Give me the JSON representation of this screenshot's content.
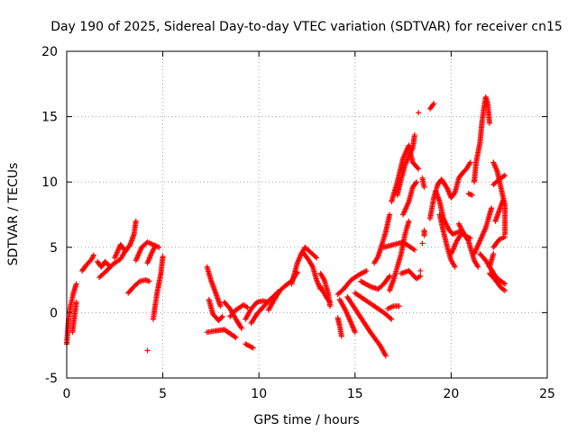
{
  "chart_data": {
    "type": "scatter",
    "title": "Day 190 of 2025, Sidereal Day-to-day VTEC variation (SDTVAR) for receiver cn15",
    "xlabel": "GPS time / hours",
    "ylabel": "SDTVAR / TECUs",
    "xlim": [
      0,
      25
    ],
    "ylim": [
      -5,
      20
    ],
    "xticks": [
      "0",
      "5",
      "10",
      "15",
      "20",
      "25"
    ],
    "yticks": [
      "-5",
      "0",
      "5",
      "10",
      "15",
      "20"
    ],
    "grid": true,
    "marker": "+",
    "color": "#ff0000",
    "series": [
      {
        "name": "SDTVAR",
        "tracks": [
          [
            [
              0.0,
              -2.4
            ],
            [
              0.1,
              -0.5
            ],
            [
              0.2,
              0.5
            ],
            [
              0.35,
              1.5
            ],
            [
              0.5,
              2.2
            ]
          ],
          [
            [
              0.3,
              -1.5
            ],
            [
              0.4,
              -0.3
            ],
            [
              0.5,
              0.8
            ]
          ],
          [
            [
              0.8,
              3.2
            ],
            [
              1.0,
              3.6
            ],
            [
              1.3,
              4.1
            ],
            [
              1.4,
              4.4
            ]
          ],
          [
            [
              1.6,
              3.9
            ],
            [
              1.8,
              3.5
            ],
            [
              2.0,
              3.9
            ],
            [
              2.2,
              3.6
            ]
          ],
          [
            [
              1.7,
              2.7
            ],
            [
              2.0,
              3.1
            ],
            [
              2.4,
              3.7
            ],
            [
              2.8,
              4.1
            ],
            [
              3.0,
              4.6
            ],
            [
              3.3,
              5.2
            ],
            [
              3.5,
              6.0
            ],
            [
              3.6,
              7.0
            ]
          ],
          [
            [
              2.5,
              4.2
            ],
            [
              2.8,
              5.2
            ],
            [
              3.0,
              4.8
            ]
          ],
          [
            [
              3.2,
              1.5
            ],
            [
              3.5,
              2.0
            ],
            [
              3.8,
              2.4
            ],
            [
              4.1,
              2.5
            ],
            [
              4.3,
              2.4
            ]
          ],
          [
            [
              3.6,
              4.0
            ],
            [
              3.9,
              5.0
            ],
            [
              4.2,
              5.4
            ],
            [
              4.5,
              5.2
            ],
            [
              4.8,
              5.0
            ]
          ],
          [
            [
              4.2,
              3.8
            ],
            [
              4.4,
              4.5
            ],
            [
              4.6,
              5.1
            ]
          ],
          [
            [
              4.5,
              -0.5
            ],
            [
              4.7,
              1.5
            ],
            [
              4.9,
              3.0
            ],
            [
              5.0,
              4.3
            ]
          ],
          [
            [
              4.2,
              -2.9
            ]
          ],
          [
            [
              7.3,
              3.5
            ],
            [
              7.5,
              2.5
            ],
            [
              7.8,
              1.3
            ],
            [
              8.0,
              0.5
            ]
          ],
          [
            [
              7.4,
              1.0
            ],
            [
              7.6,
              -0.1
            ],
            [
              7.9,
              -0.6
            ],
            [
              8.1,
              -0.3
            ]
          ],
          [
            [
              7.3,
              -1.5
            ],
            [
              7.7,
              -1.4
            ],
            [
              8.2,
              -1.3
            ],
            [
              8.5,
              -1.6
            ],
            [
              8.8,
              -1.9
            ]
          ],
          [
            [
              8.2,
              0.8
            ],
            [
              8.5,
              0.3
            ],
            [
              8.8,
              -0.5
            ],
            [
              9.1,
              -1.2
            ]
          ],
          [
            [
              8.5,
              -0.3
            ],
            [
              8.8,
              0.2
            ],
            [
              9.2,
              0.6
            ],
            [
              9.4,
              0.4
            ]
          ],
          [
            [
              9.3,
              -2.4
            ],
            [
              9.7,
              -2.7
            ]
          ],
          [
            [
              9.3,
              -0.5
            ],
            [
              9.6,
              0.3
            ],
            [
              9.9,
              0.8
            ],
            [
              10.2,
              0.9
            ],
            [
              10.5,
              0.8
            ]
          ],
          [
            [
              9.6,
              -0.8
            ],
            [
              9.9,
              -0.1
            ],
            [
              10.2,
              0.4
            ],
            [
              10.5,
              0.9
            ],
            [
              10.8,
              1.3
            ],
            [
              11.0,
              1.6
            ]
          ],
          [
            [
              10.5,
              0.2
            ],
            [
              10.8,
              1.0
            ],
            [
              11.1,
              1.7
            ],
            [
              11.4,
              2.1
            ],
            [
              11.7,
              2.4
            ],
            [
              12.0,
              3.1
            ]
          ],
          [
            [
              11.7,
              2.2
            ],
            [
              12.0,
              3.8
            ],
            [
              12.2,
              4.5
            ],
            [
              12.4,
              5.0
            ],
            [
              12.7,
              4.6
            ],
            [
              13.0,
              4.2
            ]
          ],
          [
            [
              12.3,
              4.6
            ],
            [
              12.6,
              4.0
            ],
            [
              12.8,
              3.5
            ],
            [
              13.0,
              2.5
            ],
            [
              13.2,
              1.8
            ]
          ],
          [
            [
              13.2,
              3.0
            ],
            [
              13.4,
              2.5
            ],
            [
              13.6,
              1.5
            ],
            [
              13.7,
              0.5
            ]
          ],
          [
            [
              13.2,
              2.0
            ],
            [
              13.5,
              1.2
            ],
            [
              13.7,
              0.8
            ]
          ],
          [
            [
              14.1,
              1.4
            ],
            [
              14.4,
              1.8
            ],
            [
              14.8,
              2.5
            ],
            [
              15.2,
              2.9
            ],
            [
              15.6,
              3.2
            ]
          ],
          [
            [
              14.1,
              -0.4
            ],
            [
              14.2,
              -1.0
            ],
            [
              14.3,
              -1.8
            ]
          ],
          [
            [
              14.2,
              1.0
            ],
            [
              14.5,
              0.2
            ],
            [
              14.8,
              -0.8
            ],
            [
              15.0,
              -1.5
            ]
          ],
          [
            [
              14.6,
              1.2
            ],
            [
              15.0,
              0.3
            ],
            [
              15.4,
              -0.6
            ],
            [
              15.8,
              -1.5
            ],
            [
              16.3,
              -2.5
            ],
            [
              16.6,
              -3.3
            ]
          ],
          [
            [
              15.0,
              1.5
            ],
            [
              15.5,
              1.0
            ],
            [
              16.0,
              0.5
            ],
            [
              16.5,
              0.0
            ],
            [
              16.9,
              -0.5
            ]
          ],
          [
            [
              15.3,
              2.4
            ],
            [
              15.8,
              2.0
            ],
            [
              16.2,
              1.8
            ],
            [
              16.5,
              2.2
            ],
            [
              16.8,
              2.8
            ]
          ],
          [
            [
              16.0,
              3.8
            ],
            [
              16.2,
              4.3
            ],
            [
              16.4,
              5.2
            ],
            [
              16.6,
              6.2
            ],
            [
              16.8,
              7.5
            ]
          ],
          [
            [
              16.7,
              0.3
            ],
            [
              17.0,
              0.5
            ],
            [
              17.3,
              0.5
            ]
          ],
          [
            [
              16.8,
              1.7
            ],
            [
              17.0,
              2.5
            ],
            [
              17.2,
              3.5
            ],
            [
              17.4,
              4.5
            ],
            [
              17.6,
              6.0
            ],
            [
              17.8,
              7.0
            ]
          ],
          [
            [
              17.2,
              9.0
            ],
            [
              17.4,
              10.2
            ],
            [
              17.6,
              11.3
            ],
            [
              17.8,
              12.0
            ],
            [
              18.0,
              12.6
            ],
            [
              18.1,
              13.6
            ]
          ],
          [
            [
              16.9,
              8.5
            ],
            [
              17.2,
              10.0
            ],
            [
              17.5,
              11.8
            ],
            [
              17.8,
              12.8
            ],
            [
              18.0,
              11.5
            ],
            [
              18.3,
              11.0
            ]
          ],
          [
            [
              16.5,
              5.0
            ],
            [
              17.0,
              5.2
            ],
            [
              17.5,
              5.4
            ],
            [
              17.9,
              5.0
            ],
            [
              18.1,
              4.8
            ]
          ],
          [
            [
              17.4,
              3.0
            ],
            [
              17.8,
              3.2
            ],
            [
              18.2,
              2.6
            ],
            [
              18.4,
              2.8
            ]
          ],
          [
            [
              17.5,
              7.5
            ],
            [
              17.8,
              8.5
            ],
            [
              18.0,
              9.6
            ],
            [
              18.2,
              10.0
            ]
          ],
          [
            [
              18.3,
              15.3
            ]
          ],
          [
            [
              18.9,
              15.6
            ],
            [
              19.0,
              15.8
            ],
            [
              19.1,
              16.0
            ]
          ],
          [
            [
              18.4,
              3.2
            ]
          ],
          [
            [
              18.5,
              5.3
            ]
          ],
          [
            [
              18.6,
              5.9
            ],
            [
              18.6,
              6.3
            ]
          ],
          [
            [
              18.5,
              10.3
            ],
            [
              18.6,
              9.6
            ]
          ],
          [
            [
              18.9,
              7.2
            ],
            [
              19.0,
              8.0
            ],
            [
              19.1,
              8.8
            ],
            [
              19.3,
              9.8
            ],
            [
              19.5,
              10.2
            ],
            [
              19.8,
              9.5
            ],
            [
              20.0,
              8.8
            ],
            [
              20.2,
              9.2
            ],
            [
              20.4,
              10.3
            ],
            [
              20.6,
              10.7
            ],
            [
              20.8,
              11.0
            ],
            [
              21.0,
              11.5
            ]
          ],
          [
            [
              19.2,
              9.3
            ],
            [
              19.4,
              8.5
            ],
            [
              19.6,
              7.2
            ],
            [
              19.9,
              6.3
            ],
            [
              20.1,
              6.0
            ],
            [
              20.4,
              6.2
            ],
            [
              20.7,
              5.9
            ],
            [
              21.0,
              5.7
            ]
          ],
          [
            [
              19.4,
              7.5
            ],
            [
              19.6,
              6.2
            ],
            [
              19.8,
              5.0
            ],
            [
              20.0,
              4.0
            ],
            [
              20.2,
              3.5
            ]
          ],
          [
            [
              20.0,
              4.5
            ],
            [
              20.3,
              5.5
            ],
            [
              20.6,
              6.2
            ]
          ],
          [
            [
              20.4,
              6.8
            ],
            [
              20.6,
              6.2
            ],
            [
              20.9,
              5.5
            ],
            [
              21.2,
              4.0
            ],
            [
              21.4,
              3.5
            ]
          ],
          [
            [
              20.9,
              9.1
            ],
            [
              21.1,
              9.0
            ]
          ],
          [
            [
              21.2,
              4.5
            ],
            [
              21.5,
              5.5
            ],
            [
              21.8,
              6.5
            ],
            [
              22.0,
              7.5
            ],
            [
              22.1,
              8.0
            ]
          ],
          [
            [
              21.2,
              10.0
            ],
            [
              21.3,
              11.5
            ],
            [
              21.5,
              13.0
            ],
            [
              21.6,
              14.5
            ],
            [
              21.7,
              15.6
            ],
            [
              21.8,
              16.5
            ],
            [
              21.9,
              16.0
            ],
            [
              22.0,
              14.5
            ]
          ],
          [
            [
              21.5,
              4.5
            ],
            [
              21.8,
              4.0
            ],
            [
              22.0,
              3.5
            ],
            [
              22.2,
              4.5
            ]
          ],
          [
            [
              22.0,
              3.5
            ],
            [
              22.3,
              2.8
            ],
            [
              22.5,
              2.5
            ],
            [
              22.8,
              2.2
            ]
          ],
          [
            [
              22.2,
              5.0
            ],
            [
              22.5,
              5.6
            ],
            [
              22.8,
              5.8
            ]
          ],
          [
            [
              22.2,
              11.5
            ],
            [
              22.4,
              10.8
            ],
            [
              22.6,
              9.5
            ],
            [
              22.8,
              8.2
            ],
            [
              22.8,
              6.0
            ]
          ],
          [
            [
              22.2,
              9.8
            ],
            [
              22.5,
              10.2
            ],
            [
              22.8,
              10.5
            ]
          ],
          [
            [
              22.0,
              3.0
            ],
            [
              22.3,
              2.5
            ],
            [
              22.6,
              1.9
            ],
            [
              22.8,
              1.7
            ]
          ],
          [
            [
              22.3,
              7.0
            ],
            [
              22.5,
              7.8
            ],
            [
              22.7,
              8.6
            ]
          ]
        ]
      }
    ]
  }
}
